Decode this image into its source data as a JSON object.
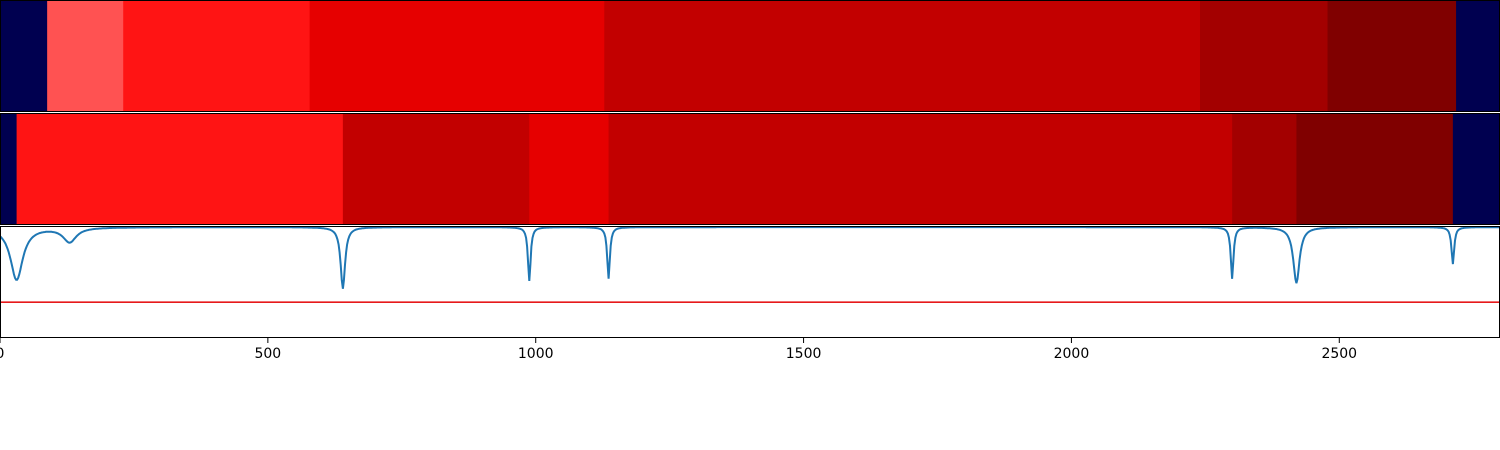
{
  "chart_data": [
    {
      "type": "heatmap",
      "x_range": [
        0,
        2800
      ],
      "segments": [
        {
          "start": 0,
          "end": 88,
          "color": "#000050"
        },
        {
          "start": 88,
          "end": 230,
          "color": "#ff5252"
        },
        {
          "start": 230,
          "end": 578,
          "color": "#ff1414"
        },
        {
          "start": 578,
          "end": 1128,
          "color": "#e60000"
        },
        {
          "start": 1128,
          "end": 2240,
          "color": "#c20000"
        },
        {
          "start": 2240,
          "end": 2478,
          "color": "#a30000"
        },
        {
          "start": 2478,
          "end": 2718,
          "color": "#800000"
        },
        {
          "start": 2718,
          "end": 2800,
          "color": "#000050"
        }
      ]
    },
    {
      "type": "heatmap",
      "x_range": [
        0,
        2800
      ],
      "segments": [
        {
          "start": 0,
          "end": 31,
          "color": "#000050"
        },
        {
          "start": 31,
          "end": 640,
          "color": "#ff1414"
        },
        {
          "start": 640,
          "end": 988,
          "color": "#c20000"
        },
        {
          "start": 988,
          "end": 1136,
          "color": "#e60000"
        },
        {
          "start": 1136,
          "end": 2300,
          "color": "#c20000"
        },
        {
          "start": 2300,
          "end": 2420,
          "color": "#a30000"
        },
        {
          "start": 2420,
          "end": 2712,
          "color": "#800000"
        },
        {
          "start": 2712,
          "end": 2800,
          "color": "#000050"
        }
      ]
    },
    {
      "type": "line",
      "x_range": [
        0,
        2800
      ],
      "ylim": [
        0,
        1
      ],
      "x_ticks": [
        0,
        500,
        1000,
        1500,
        2000,
        2500
      ],
      "x_tick_labels": [
        "0",
        "500",
        "1000",
        "1500",
        "2000",
        "2500"
      ],
      "baseline": 0.99,
      "dips": [
        {
          "x": 31,
          "depth": 0.47,
          "width": 14
        },
        {
          "x": 130,
          "depth": 0.13,
          "width": 15
        },
        {
          "x": 640,
          "depth": 0.55,
          "width": 5
        },
        {
          "x": 988,
          "depth": 0.48,
          "width": 3
        },
        {
          "x": 1136,
          "depth": 0.46,
          "width": 3
        },
        {
          "x": 2300,
          "depth": 0.46,
          "width": 3
        },
        {
          "x": 2420,
          "depth": 0.5,
          "width": 7
        },
        {
          "x": 2712,
          "depth": 0.33,
          "width": 3
        }
      ],
      "threshold": 0.32,
      "line_color": "#1f77b4",
      "threshold_color": "#e6191b"
    }
  ]
}
